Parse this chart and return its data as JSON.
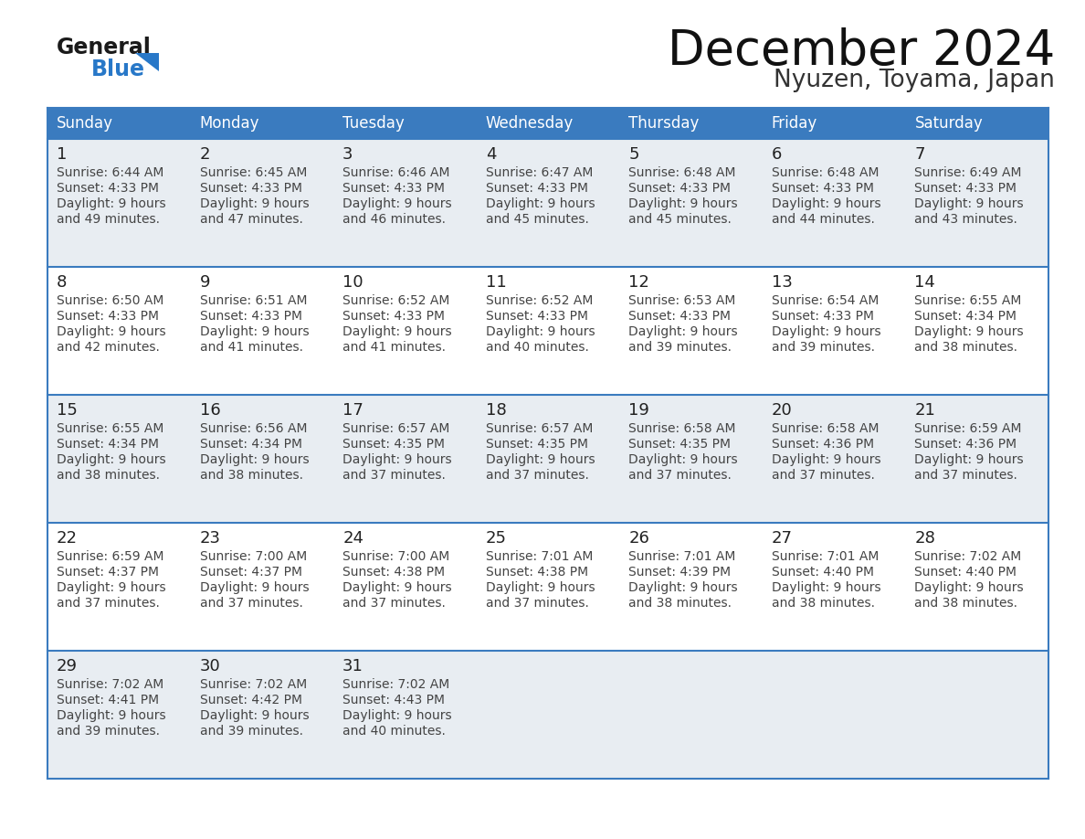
{
  "title": "December 2024",
  "subtitle": "Nyuzen, Toyama, Japan",
  "days_of_week": [
    "Sunday",
    "Monday",
    "Tuesday",
    "Wednesday",
    "Thursday",
    "Friday",
    "Saturday"
  ],
  "header_bg": "#3a7bbf",
  "header_text": "#ffffff",
  "row_bg_white": "#ffffff",
  "row_bg_gray": "#e8edf2",
  "border_color": "#3a7bbf",
  "day_num_color": "#222222",
  "cell_text_color": "#444444",
  "title_color": "#111111",
  "subtitle_color": "#333333",
  "logo_color_general": "#1a1a1a",
  "logo_color_blue": "#2878c8",
  "logo_triangle_color": "#2878c8",
  "calendar_data": [
    [
      {
        "day": 1,
        "sunrise": "6:44 AM",
        "sunset": "4:33 PM",
        "daylight_hours": 9,
        "daylight_minutes": 49
      },
      {
        "day": 2,
        "sunrise": "6:45 AM",
        "sunset": "4:33 PM",
        "daylight_hours": 9,
        "daylight_minutes": 47
      },
      {
        "day": 3,
        "sunrise": "6:46 AM",
        "sunset": "4:33 PM",
        "daylight_hours": 9,
        "daylight_minutes": 46
      },
      {
        "day": 4,
        "sunrise": "6:47 AM",
        "sunset": "4:33 PM",
        "daylight_hours": 9,
        "daylight_minutes": 45
      },
      {
        "day": 5,
        "sunrise": "6:48 AM",
        "sunset": "4:33 PM",
        "daylight_hours": 9,
        "daylight_minutes": 45
      },
      {
        "day": 6,
        "sunrise": "6:48 AM",
        "sunset": "4:33 PM",
        "daylight_hours": 9,
        "daylight_minutes": 44
      },
      {
        "day": 7,
        "sunrise": "6:49 AM",
        "sunset": "4:33 PM",
        "daylight_hours": 9,
        "daylight_minutes": 43
      }
    ],
    [
      {
        "day": 8,
        "sunrise": "6:50 AM",
        "sunset": "4:33 PM",
        "daylight_hours": 9,
        "daylight_minutes": 42
      },
      {
        "day": 9,
        "sunrise": "6:51 AM",
        "sunset": "4:33 PM",
        "daylight_hours": 9,
        "daylight_minutes": 41
      },
      {
        "day": 10,
        "sunrise": "6:52 AM",
        "sunset": "4:33 PM",
        "daylight_hours": 9,
        "daylight_minutes": 41
      },
      {
        "day": 11,
        "sunrise": "6:52 AM",
        "sunset": "4:33 PM",
        "daylight_hours": 9,
        "daylight_minutes": 40
      },
      {
        "day": 12,
        "sunrise": "6:53 AM",
        "sunset": "4:33 PM",
        "daylight_hours": 9,
        "daylight_minutes": 39
      },
      {
        "day": 13,
        "sunrise": "6:54 AM",
        "sunset": "4:33 PM",
        "daylight_hours": 9,
        "daylight_minutes": 39
      },
      {
        "day": 14,
        "sunrise": "6:55 AM",
        "sunset": "4:34 PM",
        "daylight_hours": 9,
        "daylight_minutes": 38
      }
    ],
    [
      {
        "day": 15,
        "sunrise": "6:55 AM",
        "sunset": "4:34 PM",
        "daylight_hours": 9,
        "daylight_minutes": 38
      },
      {
        "day": 16,
        "sunrise": "6:56 AM",
        "sunset": "4:34 PM",
        "daylight_hours": 9,
        "daylight_minutes": 38
      },
      {
        "day": 17,
        "sunrise": "6:57 AM",
        "sunset": "4:35 PM",
        "daylight_hours": 9,
        "daylight_minutes": 37
      },
      {
        "day": 18,
        "sunrise": "6:57 AM",
        "sunset": "4:35 PM",
        "daylight_hours": 9,
        "daylight_minutes": 37
      },
      {
        "day": 19,
        "sunrise": "6:58 AM",
        "sunset": "4:35 PM",
        "daylight_hours": 9,
        "daylight_minutes": 37
      },
      {
        "day": 20,
        "sunrise": "6:58 AM",
        "sunset": "4:36 PM",
        "daylight_hours": 9,
        "daylight_minutes": 37
      },
      {
        "day": 21,
        "sunrise": "6:59 AM",
        "sunset": "4:36 PM",
        "daylight_hours": 9,
        "daylight_minutes": 37
      }
    ],
    [
      {
        "day": 22,
        "sunrise": "6:59 AM",
        "sunset": "4:37 PM",
        "daylight_hours": 9,
        "daylight_minutes": 37
      },
      {
        "day": 23,
        "sunrise": "7:00 AM",
        "sunset": "4:37 PM",
        "daylight_hours": 9,
        "daylight_minutes": 37
      },
      {
        "day": 24,
        "sunrise": "7:00 AM",
        "sunset": "4:38 PM",
        "daylight_hours": 9,
        "daylight_minutes": 37
      },
      {
        "day": 25,
        "sunrise": "7:01 AM",
        "sunset": "4:38 PM",
        "daylight_hours": 9,
        "daylight_minutes": 37
      },
      {
        "day": 26,
        "sunrise": "7:01 AM",
        "sunset": "4:39 PM",
        "daylight_hours": 9,
        "daylight_minutes": 38
      },
      {
        "day": 27,
        "sunrise": "7:01 AM",
        "sunset": "4:40 PM",
        "daylight_hours": 9,
        "daylight_minutes": 38
      },
      {
        "day": 28,
        "sunrise": "7:02 AM",
        "sunset": "4:40 PM",
        "daylight_hours": 9,
        "daylight_minutes": 38
      }
    ],
    [
      {
        "day": 29,
        "sunrise": "7:02 AM",
        "sunset": "4:41 PM",
        "daylight_hours": 9,
        "daylight_minutes": 39
      },
      {
        "day": 30,
        "sunrise": "7:02 AM",
        "sunset": "4:42 PM",
        "daylight_hours": 9,
        "daylight_minutes": 39
      },
      {
        "day": 31,
        "sunrise": "7:02 AM",
        "sunset": "4:43 PM",
        "daylight_hours": 9,
        "daylight_minutes": 40
      },
      null,
      null,
      null,
      null
    ]
  ],
  "row_bg_pattern": [
    1,
    0,
    1,
    0,
    1
  ]
}
